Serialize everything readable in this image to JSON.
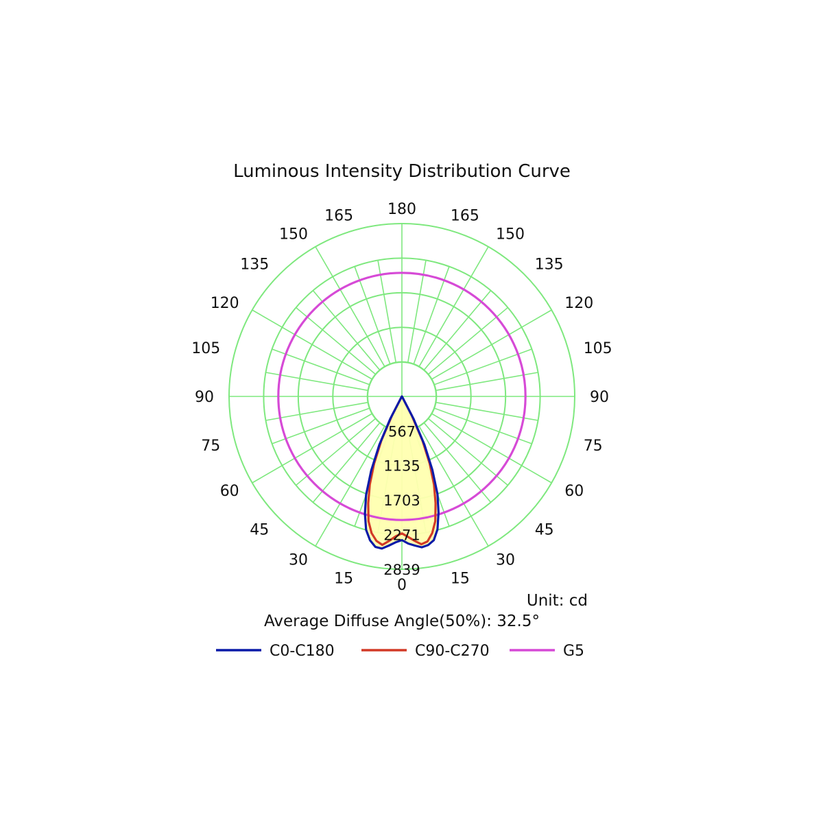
{
  "chart_data": {
    "type": "polar",
    "title": "Luminous Intensity Distribution Curve",
    "unit_label": "Unit: cd",
    "footer_note": "Average Diffuse Angle(50%): 32.5°",
    "radial_max": 2839,
    "radial_ticks": [
      567,
      1135,
      1703,
      2271,
      2839
    ],
    "angle_labels_right": [
      "0",
      "15",
      "30",
      "45",
      "60",
      "75",
      "90",
      "105",
      "120",
      "135",
      "150",
      "165",
      "180"
    ],
    "angle_labels_left": [
      "15",
      "30",
      "45",
      "60",
      "75",
      "90",
      "105",
      "120",
      "135",
      "150",
      "165"
    ],
    "colors": {
      "grid": "#7ee87e",
      "fill": "#ffffb0",
      "C0-C180": "#0a1aa8",
      "C90-C270": "#d23a26",
      "G5": "#d64ad6"
    },
    "series": [
      {
        "name": "C0-C180",
        "angles": [
          -180,
          -30,
          -27.5,
          -25,
          -22.5,
          -20,
          -17.5,
          -15,
          -12.5,
          -10,
          -7.5,
          -5,
          -2.5,
          0,
          2.5,
          5,
          7.5,
          10,
          12.5,
          15,
          17.5,
          20,
          22.5,
          25,
          27.5,
          30,
          180
        ],
        "values": [
          0,
          30,
          410,
          880,
          1320,
          1720,
          2020,
          2270,
          2420,
          2510,
          2520,
          2460,
          2400,
          2360,
          2420,
          2460,
          2500,
          2480,
          2420,
          2260,
          2000,
          1710,
          1310,
          880,
          410,
          30,
          0
        ]
      },
      {
        "name": "C90-C270",
        "angles": [
          -180,
          -30,
          -27.5,
          -25,
          -22.5,
          -20,
          -17.5,
          -15,
          -12.5,
          -10,
          -7.5,
          -5,
          -2.5,
          0,
          2.5,
          5,
          7.5,
          10,
          12.5,
          15,
          17.5,
          20,
          22.5,
          25,
          27.5,
          30,
          180
        ],
        "values": [
          0,
          30,
          350,
          800,
          1190,
          1540,
          1840,
          2120,
          2300,
          2410,
          2460,
          2380,
          2300,
          2250,
          2310,
          2380,
          2450,
          2420,
          2300,
          2120,
          1840,
          1540,
          1190,
          800,
          350,
          30,
          0
        ]
      },
      {
        "name": "G5",
        "angles": [
          0,
          30,
          60,
          90,
          120,
          150,
          180,
          210,
          240,
          270,
          300,
          330,
          360
        ],
        "values": [
          2839,
          2839,
          2839,
          2839,
          2839,
          2839,
          2839,
          2839,
          2839,
          2839,
          2839,
          2839,
          2839
        ]
      }
    ],
    "legend": {
      "position": "bottom",
      "entries": [
        "C0-C180",
        "C90-C270",
        "G5"
      ]
    }
  }
}
